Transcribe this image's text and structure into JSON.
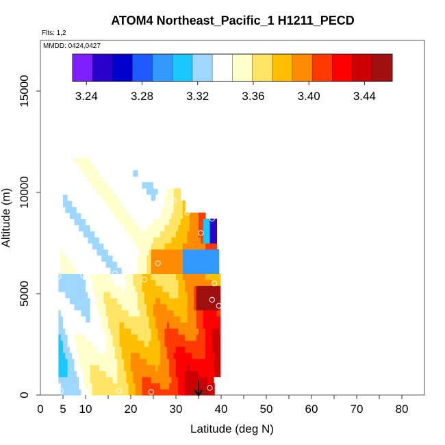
{
  "chart_data": {
    "type": "heatmap",
    "title": "ATOM4 Northeast_Pacific_1 H1211_PECD",
    "flights_note": "Flts: 1,2",
    "date_note": "MMDD: 0424,0427",
    "xlabel": "Latitude (deg N)",
    "ylabel": "Altitude (m)",
    "xlim": [
      0,
      85
    ],
    "ylim": [
      0,
      17500
    ],
    "x_ticks": [
      0,
      5,
      10,
      20,
      30,
      40,
      50,
      60,
      70,
      80
    ],
    "y_ticks": [
      0,
      5000,
      10000,
      15000
    ],
    "colorbar": {
      "min": 3.23,
      "max": 3.46,
      "ticks": [
        "3.24",
        "3.28",
        "3.32",
        "3.36",
        "3.40",
        "3.44"
      ],
      "tick_values": [
        3.24,
        3.28,
        3.32,
        3.36,
        3.4,
        3.44
      ],
      "colors": [
        "#7f1fff",
        "#2a00cc",
        "#0000cc",
        "#1e5aff",
        "#3299ff",
        "#19c8ff",
        "#9ed7ff",
        "#ffffff",
        "#ffffcc",
        "#ffe466",
        "#ffbf00",
        "#ff8c00",
        "#ff3a00",
        "#ff0000",
        "#cc0000",
        "#a01010"
      ]
    },
    "field_description": "Lower troposphere increases from ~3.32 (south, 5N) to ~3.45 (north, 38N); upper troposphere ~3.33-3.36 with higher values near 30-37N",
    "data_extent": {
      "lower_lat_range": [
        4,
        40
      ],
      "upper_lat_range": [
        5,
        38
      ],
      "alt_top": 11500,
      "transition_alt": 6000
    },
    "sample_points": [
      {
        "lat": 4.5,
        "alt": 200
      },
      {
        "lat": 10.5,
        "alt": 200
      },
      {
        "lat": 17.5,
        "alt": 200
      },
      {
        "lat": 24.5,
        "alt": 150
      },
      {
        "lat": 37.5,
        "alt": 350
      },
      {
        "lat": 39.5,
        "alt": 4400
      },
      {
        "lat": 38.0,
        "alt": 4700
      },
      {
        "lat": 38.5,
        "alt": 5500
      },
      {
        "lat": 4.0,
        "alt": 5850
      },
      {
        "lat": 5.5,
        "alt": 6250
      },
      {
        "lat": 9.5,
        "alt": 5900
      },
      {
        "lat": 12.0,
        "alt": 6050
      },
      {
        "lat": 16.5,
        "alt": 6000
      },
      {
        "lat": 19.0,
        "alt": 6050
      },
      {
        "lat": 23.0,
        "alt": 5700
      },
      {
        "lat": 26.0,
        "alt": 6500
      },
      {
        "lat": 35.5,
        "alt": 8000
      },
      {
        "lat": 38.0,
        "alt": 8700
      },
      {
        "lat": 32.5,
        "alt": 9000
      },
      {
        "lat": 28.5,
        "alt": 9500
      },
      {
        "lat": 26.0,
        "alt": 9600
      },
      {
        "lat": 29.5,
        "alt": 9600
      },
      {
        "lat": 20.0,
        "alt": 10300
      },
      {
        "lat": 18.5,
        "alt": 10600
      },
      {
        "lat": 14.0,
        "alt": 10700
      },
      {
        "lat": 11.0,
        "alt": 10900
      },
      {
        "lat": 5.8,
        "alt": 11300
      },
      {
        "lat": 7.5,
        "alt": 11300
      },
      {
        "lat": 8.3,
        "alt": 11350
      },
      {
        "lat": 14.3,
        "alt": 11250
      }
    ],
    "arrow": {
      "lat": 35,
      "alt_from": 700,
      "alt_to": 0
    }
  }
}
